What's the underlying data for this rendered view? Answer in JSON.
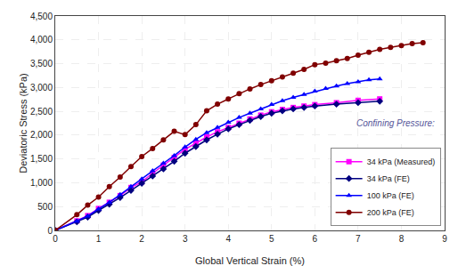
{
  "chart_data": {
    "type": "line",
    "xlabel": "Global Vertical Strain (%)",
    "ylabel": "Deviatoric Stress (kPa)",
    "annotation": "Confining Pressure:",
    "xlim": [
      0,
      9
    ],
    "ylim": [
      0,
      4500
    ],
    "xticks": [
      0,
      1,
      2,
      3,
      4,
      5,
      6,
      7,
      8,
      9
    ],
    "yticks": [
      0,
      500,
      {
        "value": 1000,
        "label": "1,000"
      },
      {
        "value": 1500,
        "label": "1,500"
      },
      {
        "value": 2000,
        "label": "2,000"
      },
      {
        "value": 2500,
        "label": "2,500"
      },
      {
        "value": 3000,
        "label": "3,000"
      },
      {
        "value": 3500,
        "label": "3,500"
      },
      {
        "value": 4000,
        "label": "4,000"
      },
      {
        "value": 4500,
        "label": "4,500"
      }
    ],
    "grid": true,
    "legend": "lower right",
    "series": [
      {
        "name": "34 kPa (Measured)",
        "color": "#FF00FF",
        "marker": "square",
        "x": [
          0,
          0.5,
          0.75,
          1.0,
          1.25,
          1.5,
          1.75,
          2.0,
          2.25,
          2.5,
          2.75,
          3.0,
          3.25,
          3.5,
          3.75,
          4.0,
          4.25,
          4.5,
          4.75,
          5.0,
          5.25,
          5.5,
          5.75,
          6.0,
          6.5,
          7.0,
          7.5
        ],
        "values": [
          0,
          200,
          310,
          460,
          590,
          730,
          900,
          1020,
          1200,
          1370,
          1530,
          1700,
          1830,
          1960,
          2070,
          2160,
          2250,
          2340,
          2420,
          2490,
          2540,
          2580,
          2610,
          2640,
          2680,
          2730,
          2760
        ]
      },
      {
        "name": "34 kPa (FE)",
        "color": "#000080",
        "marker": "diamond",
        "x": [
          0,
          0.5,
          0.75,
          1.0,
          1.25,
          1.5,
          1.75,
          2.0,
          2.25,
          2.5,
          2.75,
          3.0,
          3.25,
          3.5,
          3.75,
          4.0,
          4.25,
          4.5,
          4.75,
          5.0,
          5.25,
          5.5,
          5.75,
          6.0,
          6.5,
          7.0,
          7.5
        ],
        "values": [
          0,
          180,
          280,
          420,
          550,
          690,
          840,
          990,
          1140,
          1290,
          1450,
          1620,
          1760,
          1900,
          2020,
          2130,
          2220,
          2310,
          2390,
          2460,
          2510,
          2550,
          2580,
          2610,
          2650,
          2680,
          2710
        ]
      },
      {
        "name": "100 kPa (FE)",
        "color": "#0000FF",
        "marker": "triangle-up",
        "x": [
          0,
          0.5,
          0.75,
          1.0,
          1.25,
          1.5,
          1.75,
          2.0,
          2.25,
          2.5,
          2.75,
          3.0,
          3.25,
          3.5,
          3.75,
          4.0,
          4.25,
          4.5,
          4.75,
          5.0,
          5.25,
          5.5,
          5.75,
          6.0,
          6.25,
          6.5,
          6.75,
          7.0,
          7.25,
          7.5
        ],
        "values": [
          0,
          190,
          300,
          450,
          590,
          750,
          920,
          1080,
          1250,
          1410,
          1570,
          1750,
          1910,
          2050,
          2160,
          2270,
          2370,
          2460,
          2550,
          2640,
          2720,
          2790,
          2850,
          2920,
          2980,
          3030,
          3080,
          3120,
          3160,
          3180
        ]
      },
      {
        "name": "200 kPa (FE)",
        "color": "#800000",
        "marker": "circle",
        "x": [
          0,
          0.5,
          0.75,
          1.0,
          1.25,
          1.5,
          1.75,
          2.0,
          2.25,
          2.5,
          2.75,
          3.0,
          3.25,
          3.5,
          3.75,
          4.0,
          4.25,
          4.5,
          4.75,
          5.0,
          5.25,
          5.5,
          5.75,
          6.0,
          6.25,
          6.5,
          6.75,
          7.0,
          7.25,
          7.5,
          7.75,
          8.0,
          8.25,
          8.5
        ],
        "values": [
          0,
          330,
          530,
          700,
          920,
          1120,
          1340,
          1550,
          1720,
          1900,
          2080,
          2010,
          2220,
          2510,
          2650,
          2760,
          2870,
          2970,
          3060,
          3140,
          3220,
          3300,
          3380,
          3480,
          3510,
          3560,
          3610,
          3680,
          3740,
          3800,
          3840,
          3880,
          3920,
          3940
        ]
      }
    ]
  }
}
